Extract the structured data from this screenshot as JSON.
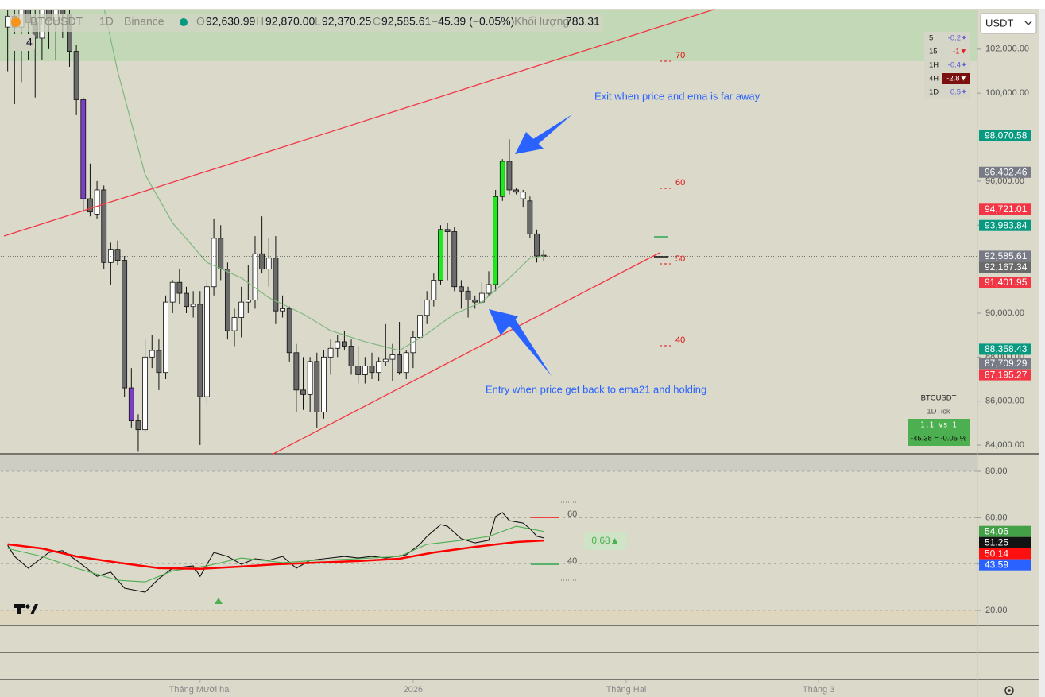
{
  "header": {
    "symbol": "BTCUSDT",
    "interval": "1D",
    "exchange": "Binance",
    "open_label": "O",
    "open": "92,630.99",
    "high_label": "H",
    "high": "92,870.00",
    "low_label": "L",
    "low": "92,370.25",
    "close_label": "C",
    "close": "92,585.61",
    "change": "−45.39 (−0.05%)",
    "volume_label": "Khối lượng",
    "volume": "783.31",
    "indicator_count": "4",
    "currency": "USDT"
  },
  "mtf_table": {
    "rows": [
      [
        "5",
        "-0.2✦"
      ],
      [
        "15",
        "-1▼"
      ],
      [
        "1H",
        "-0.4✦"
      ],
      [
        "4H",
        "-2.8▼"
      ],
      [
        "1D",
        "0.5✦"
      ]
    ]
  },
  "info_box": {
    "symbol": "BTCUSDT",
    "subtitle": "1DTick",
    "ratio": "1.1 vs 1",
    "change": "-45.38 ≈ -0.05 %"
  },
  "chart_data": [
    {
      "type": "candlestick",
      "open": [
        103000,
        103500,
        103000,
        103800,
        103200,
        102500,
        103800,
        103300,
        103900,
        103600,
        101900,
        99700,
        95200,
        94500,
        95600,
        92300,
        92900,
        92400,
        86600,
        85100,
        84700,
        88000,
        88300,
        87300,
        90500,
        91400,
        90900,
        90300,
        90400,
        86200,
        91200,
        93400,
        92000,
        89200,
        89800,
        90500,
        90600,
        92700,
        92000,
        92500,
        90100,
        90200,
        88200,
        86500,
        86300,
        87800,
        85500,
        88000,
        88400,
        88700,
        88500,
        87600,
        87200,
        87600,
        87300,
        87800,
        87900,
        88100,
        87300,
        88200,
        88900,
        89900,
        90600,
        91500,
        93800,
        93700,
        91200,
        91000,
        90600,
        90500,
        90900,
        91300,
        95300,
        96900,
        95600,
        95200,
        95100,
        93600,
        92630.99
      ],
      "high": [
        104500,
        104500,
        104500,
        104500,
        104000,
        104200,
        104500,
        104000,
        104500,
        104200,
        102200,
        99800,
        96800,
        96000,
        95800,
        93200,
        93300,
        92600,
        87500,
        85400,
        88800,
        89000,
        88800,
        90800,
        91500,
        92000,
        91200,
        91000,
        91000,
        91500,
        94300,
        94000,
        92300,
        90200,
        91200,
        92200,
        93500,
        94400,
        93400,
        93500,
        90800,
        90300,
        88600,
        88000,
        88000,
        88200,
        88300,
        88800,
        89000,
        89200,
        88800,
        88500,
        88000,
        88200,
        88000,
        89500,
        88600,
        89600,
        88300,
        89200,
        90800,
        91000,
        91800,
        94000,
        94100,
        93900,
        91500,
        91200,
        90800,
        91400,
        91900,
        95600,
        97000,
        97900,
        95700,
        95600,
        95300,
        93800,
        92870
      ],
      "low": [
        101000,
        99500,
        100500,
        101500,
        99800,
        101500,
        102000,
        101500,
        102500,
        101200,
        99000,
        94600,
        94400,
        94300,
        92000,
        91300,
        92200,
        86200,
        84800,
        83700,
        84600,
        87500,
        86500,
        87000,
        90000,
        90400,
        90000,
        89800,
        84000,
        85800,
        90800,
        91500,
        88800,
        88500,
        88900,
        90000,
        90200,
        91800,
        91200,
        89500,
        89800,
        87800,
        85500,
        85600,
        85500,
        84800,
        85200,
        87200,
        88000,
        88300,
        87200,
        86800,
        86800,
        87000,
        86900,
        87600,
        86900,
        87200,
        87000,
        87500,
        88700,
        89500,
        90300,
        91300,
        91500,
        91000,
        90200,
        89800,
        90200,
        90400,
        90800,
        91000,
        95100,
        95400,
        95400,
        94800,
        93400,
        92300,
        92370.25
      ],
      "close": [
        103500,
        103000,
        103800,
        103200,
        102500,
        103800,
        103300,
        103900,
        103600,
        101900,
        99700,
        95200,
        94600,
        95600,
        92300,
        92900,
        92400,
        86600,
        85100,
        84700,
        88000,
        88300,
        87300,
        90500,
        91400,
        90900,
        90300,
        90400,
        86200,
        91200,
        93400,
        92000,
        89200,
        89800,
        90500,
        90600,
        92700,
        92000,
        92500,
        90100,
        90200,
        88200,
        86500,
        86300,
        87800,
        85500,
        88000,
        88400,
        88700,
        88500,
        87600,
        87200,
        87600,
        87300,
        87800,
        87900,
        88100,
        87300,
        88200,
        88900,
        89900,
        90600,
        91500,
        93800,
        93700,
        91200,
        91000,
        90600,
        90500,
        90900,
        91300,
        95300,
        96900,
        95600,
        95500,
        95500,
        93600,
        92600,
        92585.61
      ],
      "colors": [
        "#ffffff",
        "#6b6b6b",
        "#ffffff",
        "#6b6b6b",
        "#6b6b6b",
        "#ffffff",
        "#6b6b6b",
        "#ffffff",
        "#6b6b6b",
        "#6b6b6b",
        "#6b6b6b",
        "#7b3fc4",
        "#6b6b6b",
        "#ffffff",
        "#6b6b6b",
        "#ffffff",
        "#6b6b6b",
        "#6b6b6b",
        "#7b3fc4",
        "#6b6b6b",
        "#ffffff",
        "#ffffff",
        "#6b6b6b",
        "#ffffff",
        "#ffffff",
        "#6b6b6b",
        "#6b6b6b",
        "#ffffff",
        "#6b6b6b",
        "#ffffff",
        "#ffffff",
        "#6b6b6b",
        "#6b6b6b",
        "#ffffff",
        "#ffffff",
        "#ffffff",
        "#ffffff",
        "#6b6b6b",
        "#ffffff",
        "#6b6b6b",
        "#ffffff",
        "#6b6b6b",
        "#6b6b6b",
        "#6b6b6b",
        "#ffffff",
        "#6b6b6b",
        "#ffffff",
        "#ffffff",
        "#ffffff",
        "#6b6b6b",
        "#6b6b6b",
        "#6b6b6b",
        "#ffffff",
        "#6b6b6b",
        "#ffffff",
        "#ffffff",
        "#ffffff",
        "#6b6b6b",
        "#ffffff",
        "#ffffff",
        "#ffffff",
        "#ffffff",
        "#ffffff",
        "#1ee81e",
        "#6b6b6b",
        "#6b6b6b",
        "#6b6b6b",
        "#6b6b6b",
        "#6b6b6b",
        "#ffffff",
        "#ffffff",
        "#1ee81e",
        "#1ee81e",
        "#6b6b6b",
        "#6b6b6b",
        "#ffffff",
        "#6b6b6b",
        "#6b6b6b",
        "#6b6b6b"
      ],
      "xlim": [
        -1,
        141
      ],
      "xticks": [
        {
          "value": 28,
          "label": "Tháng Mười hai"
        },
        {
          "value": 59,
          "label": "2026"
        },
        {
          "value": 90,
          "label": "Tháng Hai"
        },
        {
          "value": 118,
          "label": "Tháng 3"
        }
      ],
      "ylim": [
        83640,
        103800
      ],
      "yticks": [
        {
          "value": 84000,
          "label": "84,000.00"
        },
        {
          "value": 86000,
          "label": "86,000.00"
        },
        {
          "value": 88000,
          "label": "88,000.00"
        },
        {
          "value": 90000,
          "label": "90,000.00"
        },
        {
          "value": 92000,
          "label": "92,000.00"
        },
        {
          "value": 94000,
          "label": "94,000.00"
        },
        {
          "value": 96000,
          "label": "96,000.00"
        },
        {
          "value": 98000,
          "label": "98,000.00"
        },
        {
          "value": 100000,
          "label": "100,000.00"
        },
        {
          "value": 102000,
          "label": "102,000.00"
        }
      ],
      "grid": false,
      "ema": {
        "color": "#7fb87f",
        "x": [
          14,
          16,
          20,
          24,
          29,
          34,
          38,
          43,
          47,
          52,
          57,
          61,
          65,
          69,
          73,
          76,
          78
        ],
        "values": [
          103900,
          101000,
          96300,
          94100,
          92300,
          91600,
          90700,
          89960,
          89200,
          88700,
          88300,
          89060,
          89960,
          90500,
          91600,
          92500,
          92600
        ]
      },
      "price_labels": [
        {
          "value": 98070.58,
          "label": "98,070.58",
          "color": "#089981"
        },
        {
          "value": 96402.46,
          "label": "96,402.46",
          "color": "#787b86"
        },
        {
          "value": 94721.01,
          "label": "94,721.01",
          "color": "#f23645"
        },
        {
          "value": 93983.84,
          "label": "93,983.84",
          "color": "#089981"
        },
        {
          "value": 92585.61,
          "label": "92,585.61",
          "color": "#787b86"
        },
        {
          "value": 92167.34,
          "label": "92,167.34",
          "color": "#6a6a6a"
        },
        {
          "value": 91401.95,
          "label": "91,401.95",
          "color": "#f23645"
        },
        {
          "value": 88358.43,
          "label": "88,358.43",
          "color": "#089981"
        },
        {
          "value": 87709.29,
          "label": "87,709.29",
          "color": "#787b86"
        },
        {
          "value": 87195.27,
          "label": "87,195.27",
          "color": "#f23645"
        }
      ],
      "annotations": [
        "Exit when price and ema is far away",
        "Entry when price get back to ema21 and holding"
      ],
      "level_labels": [
        "70",
        "60",
        "50",
        "40"
      ]
    },
    {
      "type": "line",
      "xlim": [
        -1,
        141
      ],
      "ylim": [
        13.5,
        87.2
      ],
      "yticks": [
        {
          "value": 20,
          "label": "20.00"
        },
        {
          "value": 40,
          "label": "40.00"
        },
        {
          "value": 60,
          "label": "60.00"
        },
        {
          "value": 80,
          "label": "80.00"
        }
      ],
      "grid": true,
      "series": [
        {
          "color": "#111111",
          "x": [
            0,
            1,
            3,
            6,
            8,
            10,
            13,
            15,
            17,
            20,
            22,
            24,
            27,
            28,
            30,
            32,
            34,
            36,
            38,
            40,
            42,
            44,
            46,
            49,
            51,
            53,
            55,
            58,
            60,
            61,
            63,
            64,
            66,
            68,
            70,
            71,
            72,
            73,
            75,
            76,
            77,
            78
          ],
          "values": [
            48.1,
            43.3,
            38.2,
            45.0,
            45.8,
            41.6,
            34.7,
            36.5,
            29.6,
            27.9,
            33.7,
            38.2,
            39.2,
            34.7,
            45.0,
            43.3,
            39.9,
            42.3,
            41.6,
            43.3,
            38.2,
            41.6,
            42.3,
            43.3,
            42.6,
            43.3,
            42.6,
            44.0,
            48.5,
            51.9,
            57.0,
            56.3,
            50.9,
            49.1,
            50.2,
            60.5,
            62.2,
            58.7,
            57.7,
            55.3,
            52.0,
            51.25
          ]
        },
        {
          "color": "#4caf50",
          "x": [
            0,
            5,
            10,
            16,
            20,
            24,
            29,
            34,
            40,
            45,
            51,
            57,
            61,
            66,
            70,
            74,
            78
          ],
          "values": [
            46.7,
            43.3,
            38.2,
            33.0,
            32.3,
            37.1,
            39.2,
            42.6,
            40.6,
            41.6,
            42.3,
            43.3,
            48.5,
            50.2,
            51.9,
            56.3,
            54.06
          ]
        },
        {
          "color": "#ff0000",
          "x": [
            0,
            5,
            10,
            16,
            22,
            28,
            34,
            39,
            45,
            51,
            57,
            62,
            68,
            74,
            78
          ],
          "values": [
            48.5,
            46.7,
            43.3,
            40.6,
            38.2,
            37.9,
            38.9,
            39.9,
            40.6,
            41.3,
            42.3,
            45.0,
            47.4,
            49.5,
            50.14
          ]
        }
      ],
      "price_labels": [
        {
          "value": 54.06,
          "label": "54.06",
          "color": "#43a047"
        },
        {
          "value": 51.25,
          "label": "51.25",
          "color": "#131313"
        },
        {
          "value": 50.14,
          "label": "50.14",
          "color": "#ff1010"
        },
        {
          "value": 43.59,
          "label": "43.59",
          "color": "#2962ff"
        }
      ],
      "level_labels": [
        "60",
        "40"
      ],
      "signal": "0.68▲"
    }
  ]
}
